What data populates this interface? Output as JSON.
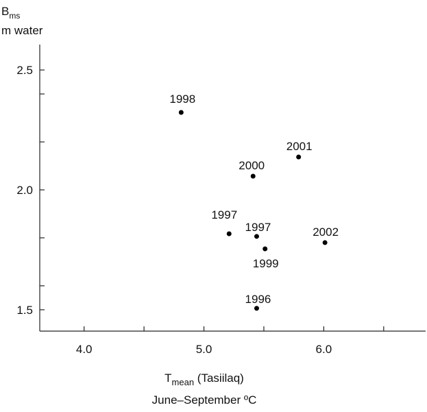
{
  "chart_data": {
    "type": "scatter",
    "y_label": {
      "symbol": "B",
      "subscript": "ms",
      "unit": "m water"
    },
    "x_label": {
      "symbol": "T",
      "subscript": "mean",
      "rest": " (Tasiilaq)",
      "line2": "June–September ºC"
    },
    "series": [
      {
        "color": "#000000",
        "x": [
          4.81,
          5.79,
          5.41,
          5.21,
          5.44,
          5.51,
          6.01,
          5.44
        ],
        "values": [
          2.323,
          2.137,
          2.057,
          1.817,
          1.806,
          1.754,
          1.78,
          1.506
        ],
        "labels": [
          "1998",
          "2001",
          "2000",
          "1997",
          "1997",
          "1999",
          "2002",
          "1996"
        ]
      }
    ],
    "xlim": [
      3.63,
      6.85
    ],
    "xticks": [
      {
        "value": 4,
        "label": "4.0"
      },
      {
        "value": 5,
        "label": "5.0"
      },
      {
        "value": 6,
        "label": "6.0"
      }
    ],
    "xminor": [
      4.5,
      5.5,
      6.5
    ],
    "ylim": [
      1.411,
      2.606
    ],
    "yticks": [
      {
        "value": 1.5,
        "label": "1.5"
      },
      {
        "value": 2,
        "label": "2.0"
      },
      {
        "value": 2.5,
        "label": "2.5"
      }
    ],
    "yminor": [
      1.6,
      1.8,
      2.2,
      2.4
    ],
    "grid": false
  }
}
